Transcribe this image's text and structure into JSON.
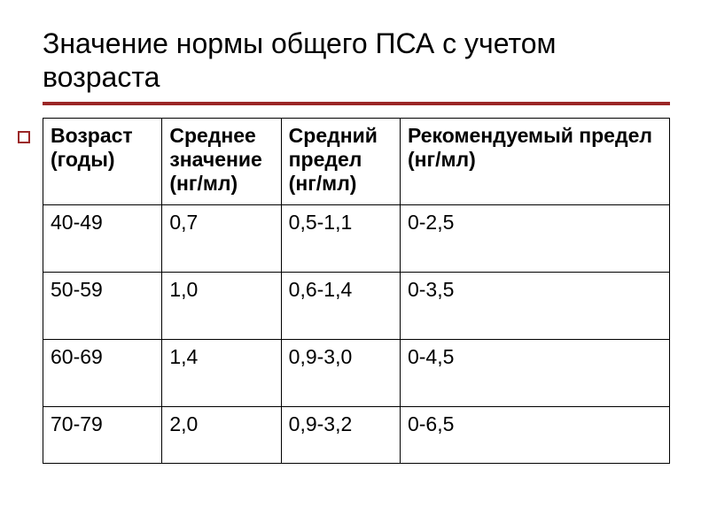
{
  "slide": {
    "title": "Значение нормы общего ПСА с учетом возраста",
    "title_fontsize": 32,
    "underline_color": "#9b2626",
    "bullet_marker_color": "#9b2626",
    "background_color": "#ffffff"
  },
  "table": {
    "type": "table",
    "border_color": "#000000",
    "header_fontsize": 23,
    "cell_fontsize": 23,
    "text_color": "#000000",
    "columns": [
      {
        "label": "Возраст (годы)",
        "width_pct": 19
      },
      {
        "label": "Среднее значение (нг/мл)",
        "width_pct": 19
      },
      {
        "label": "Средний предел (нг/мл)",
        "width_pct": 19
      },
      {
        "label": "Рекомендуемый предел (нг/мл)",
        "width_pct": 43
      }
    ],
    "rows": [
      [
        "40-49",
        "0,7",
        "0,5-1,1",
        "0-2,5"
      ],
      [
        "50-59",
        "1,0",
        "0,6-1,4",
        "0-3,5"
      ],
      [
        "60-69",
        "1,4",
        "0,9-3,0",
        "0-4,5"
      ],
      [
        "70-79",
        "2,0",
        "0,9-3,2",
        "0-6,5"
      ]
    ]
  }
}
